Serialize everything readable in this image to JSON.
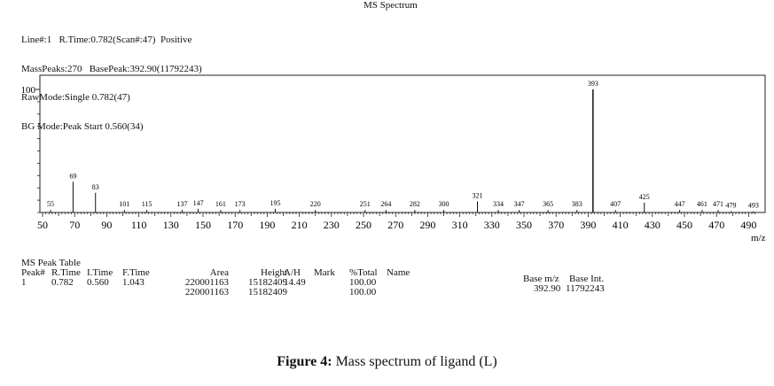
{
  "header": {
    "title": "MS Spectrum",
    "lines": [
      "Line#:1   R.Time:0.782(Scan#:47)  Positive",
      "MassPeaks:270   BasePeak:392.90(11792243)",
      "RawMode:Single 0.782(47)",
      "BG Mode:Peak Start 0.560(34)"
    ]
  },
  "chart_data": {
    "type": "bar",
    "title": "MS Spectrum",
    "xlabel": "m/z",
    "ylabel": "",
    "xlim": [
      50,
      500
    ],
    "ylim": [
      0,
      100
    ],
    "yticks": [
      "100",
      "50"
    ],
    "xticks": [
      50,
      70,
      90,
      110,
      130,
      150,
      170,
      190,
      210,
      230,
      250,
      270,
      290,
      310,
      330,
      350,
      370,
      390,
      410,
      430,
      450,
      470,
      490
    ],
    "peaks": [
      {
        "mz": 55,
        "intensity": 2
      },
      {
        "mz": 69,
        "intensity": 25
      },
      {
        "mz": 83,
        "intensity": 16
      },
      {
        "mz": 101,
        "intensity": 2
      },
      {
        "mz": 115,
        "intensity": 2
      },
      {
        "mz": 137,
        "intensity": 2
      },
      {
        "mz": 147,
        "intensity": 3
      },
      {
        "mz": 161,
        "intensity": 2
      },
      {
        "mz": 173,
        "intensity": 2
      },
      {
        "mz": 195,
        "intensity": 3
      },
      {
        "mz": 220,
        "intensity": 2
      },
      {
        "mz": 251,
        "intensity": 2
      },
      {
        "mz": 264,
        "intensity": 2
      },
      {
        "mz": 282,
        "intensity": 2
      },
      {
        "mz": 300,
        "intensity": 2
      },
      {
        "mz": 321,
        "intensity": 9
      },
      {
        "mz": 334,
        "intensity": 2
      },
      {
        "mz": 347,
        "intensity": 2
      },
      {
        "mz": 365,
        "intensity": 2
      },
      {
        "mz": 383,
        "intensity": 2
      },
      {
        "mz": 393,
        "intensity": 100
      },
      {
        "mz": 407,
        "intensity": 2
      },
      {
        "mz": 425,
        "intensity": 8
      },
      {
        "mz": 447,
        "intensity": 2
      },
      {
        "mz": 461,
        "intensity": 2
      },
      {
        "mz": 471,
        "intensity": 2
      },
      {
        "mz": 479,
        "intensity": 1
      },
      {
        "mz": 493,
        "intensity": 1
      }
    ]
  },
  "peak_table": {
    "title": "MS Peak Table",
    "columns": [
      "Peak#",
      "R.Time",
      "I.Time",
      "F.Time",
      "Area",
      "Height",
      "A/H",
      "Mark",
      "%Total",
      "Name"
    ],
    "rows": [
      [
        "1",
        "0.782",
        "0.560",
        "1.043",
        "220001163",
        "15182409",
        "14.49",
        "",
        "100.00",
        ""
      ]
    ],
    "totals": {
      "area": "220001163",
      "height": "15182409",
      "total": "100.00"
    },
    "base_headers": [
      "Base m/z",
      "Base Int."
    ],
    "base_values": [
      "392.90",
      "11792243"
    ]
  },
  "caption": {
    "bold": "Figure 4:",
    "text": " Mass spectrum of ligand (L)"
  }
}
